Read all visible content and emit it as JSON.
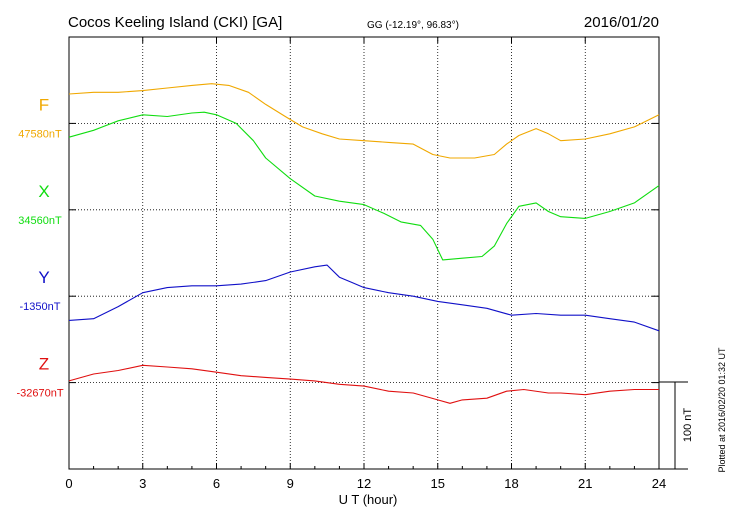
{
  "header": {
    "station": "Cocos Keeling Island (CKI)  [GA]",
    "coords": "GG (-12.19°,  96.83°)",
    "date": "2016/01/20"
  },
  "plotted_note": "Plotted at 2016/02/20 01:32 UT",
  "scale_label": "100 nT",
  "chart_data": {
    "type": "line",
    "xlabel": "U T (hour)",
    "xlim": [
      0,
      24
    ],
    "xticks": [
      "0",
      "3",
      "6",
      "9",
      "12",
      "15",
      "18",
      "21",
      "24"
    ],
    "grid": true,
    "series": [
      {
        "name": "F",
        "baseline": "47580nT",
        "color": "#f0a800",
        "x": [
          0,
          1,
          2,
          3,
          4,
          5,
          5.8,
          6.5,
          7.3,
          8,
          8.8,
          9.5,
          10.3,
          11,
          12,
          13,
          14,
          14.8,
          15.5,
          16.5,
          17.3,
          17.8,
          18.3,
          19,
          19.5,
          20,
          21,
          22,
          23,
          24
        ],
        "y": [
          34,
          36,
          36,
          38,
          41,
          44,
          46,
          44,
          36,
          22,
          8,
          -4,
          -12,
          -18,
          -20,
          -22,
          -24,
          -36,
          -40,
          -40,
          -36,
          -24,
          -14,
          -6,
          -12,
          -20,
          -18,
          -12,
          -4,
          10
        ]
      },
      {
        "name": "X",
        "baseline": "34560nT",
        "color": "#10dd10",
        "x": [
          0,
          1,
          2,
          3,
          4,
          5,
          5.5,
          6,
          6.8,
          7.5,
          8,
          9,
          10,
          11,
          12,
          12.8,
          13.5,
          14.3,
          14.8,
          15.2,
          16,
          16.8,
          17.3,
          17.8,
          18.3,
          19,
          19.5,
          20,
          21,
          22,
          23,
          24
        ],
        "y": [
          84,
          92,
          103,
          110,
          108,
          112,
          113,
          110,
          100,
          80,
          60,
          36,
          16,
          10,
          6,
          -4,
          -14,
          -18,
          -34,
          -58,
          -56,
          -54,
          -42,
          -16,
          4,
          8,
          -2,
          -8,
          -10,
          -2,
          8,
          28
        ]
      },
      {
        "name": "Y",
        "baseline": "-1350nT",
        "color": "#1010c8",
        "x": [
          0,
          1,
          2,
          3,
          4,
          5,
          6,
          7,
          8,
          9,
          10,
          10.5,
          11,
          11.5,
          12,
          13,
          14,
          15,
          16,
          17,
          18,
          19,
          20,
          21,
          22,
          23,
          24
        ],
        "y": [
          -28,
          -26,
          -12,
          4,
          10,
          12,
          12,
          14,
          18,
          28,
          34,
          36,
          22,
          16,
          10,
          4,
          0,
          -6,
          -10,
          -14,
          -22,
          -20,
          -22,
          -22,
          -26,
          -30,
          -40
        ]
      },
      {
        "name": "Z",
        "baseline": "-32670nT",
        "color": "#e01010",
        "x": [
          0,
          1,
          2,
          3,
          4,
          5,
          6,
          7,
          8,
          9,
          10,
          11,
          12,
          13,
          14,
          15,
          15.5,
          16,
          17,
          17.8,
          18.5,
          19.5,
          20,
          21,
          22,
          23,
          24
        ],
        "y": [
          2,
          10,
          14,
          20,
          18,
          16,
          12,
          8,
          6,
          4,
          2,
          -2,
          -4,
          -10,
          -12,
          -20,
          -24,
          -20,
          -18,
          -10,
          -8,
          -12,
          -12,
          -14,
          -10,
          -8,
          -8
        ]
      }
    ]
  }
}
